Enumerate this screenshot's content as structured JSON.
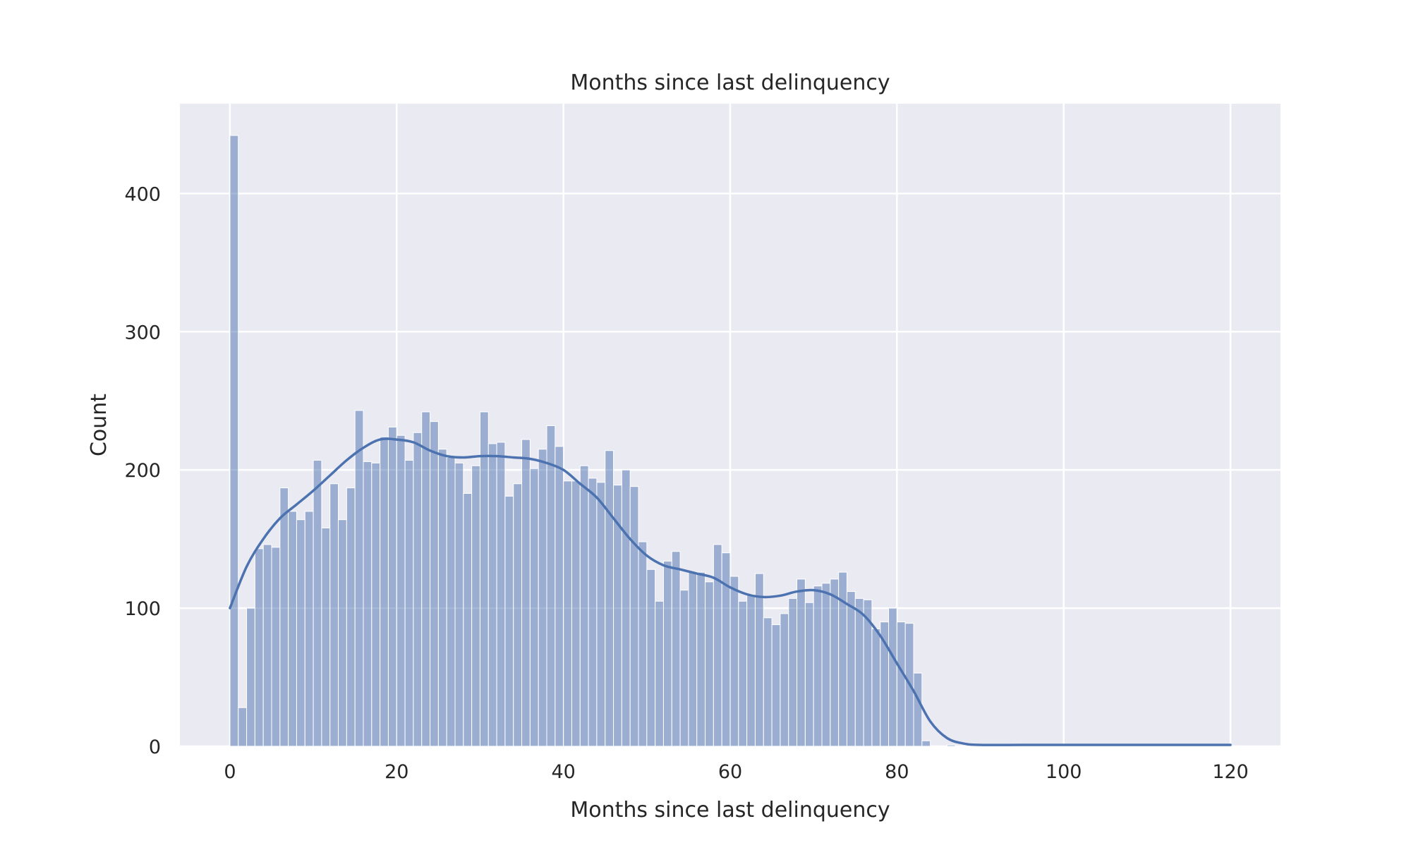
{
  "chart_data": {
    "type": "bar",
    "title": "Months since last delinquency",
    "xlabel": "Months since last delinquency",
    "ylabel": "Count",
    "xlim": [
      -6,
      126
    ],
    "ylim": [
      0,
      465
    ],
    "xticks": [
      0,
      20,
      40,
      60,
      80,
      100,
      120
    ],
    "yticks": [
      0,
      100,
      200,
      300,
      400
    ],
    "grid": true,
    "bin_start": 0,
    "bin_width": 1,
    "bar_color": "#4c72b0",
    "kde_color": "#4c72b0",
    "background_color": "#eaeaf2",
    "grid_color": "#ffffff",
    "values": [
      442,
      28,
      100,
      143,
      146,
      144,
      187,
      170,
      164,
      170,
      207,
      158,
      190,
      164,
      187,
      243,
      206,
      205,
      224,
      231,
      225,
      207,
      227,
      242,
      235,
      215,
      209,
      205,
      183,
      203,
      242,
      219,
      220,
      181,
      190,
      222,
      201,
      215,
      232,
      217,
      192,
      192,
      203,
      194,
      191,
      214,
      189,
      200,
      188,
      148,
      128,
      105,
      134,
      141,
      113,
      126,
      126,
      119,
      146,
      140,
      123,
      105,
      110,
      125,
      93,
      88,
      96,
      107,
      121,
      104,
      116,
      118,
      121,
      126,
      112,
      107,
      106,
      85,
      90,
      100,
      90,
      89,
      53,
      4,
      0,
      0,
      1,
      0,
      0,
      0,
      0,
      0,
      0,
      0,
      0,
      0,
      0,
      0,
      0,
      0,
      0,
      0,
      0,
      0,
      0,
      0,
      0,
      0,
      0,
      0,
      0,
      0,
      0,
      0,
      0,
      0,
      0,
      0,
      0,
      1
    ],
    "kde": {
      "x": [
        0,
        2,
        4,
        6,
        8,
        10,
        12,
        14,
        16,
        18,
        20,
        22,
        24,
        26,
        28,
        30,
        32,
        34,
        36,
        38,
        40,
        42,
        44,
        46,
        48,
        50,
        52,
        54,
        56,
        58,
        60,
        62,
        64,
        66,
        68,
        70,
        72,
        74,
        76,
        78,
        80,
        82,
        84,
        86,
        88,
        90,
        95,
        100,
        110,
        120
      ],
      "y": [
        100,
        130,
        150,
        165,
        175,
        185,
        196,
        207,
        216,
        222,
        222,
        220,
        214,
        210,
        209,
        210,
        210,
        209,
        208,
        205,
        200,
        190,
        180,
        165,
        150,
        138,
        131,
        128,
        125,
        122,
        115,
        110,
        108,
        109,
        112,
        113,
        110,
        103,
        95,
        80,
        60,
        40,
        18,
        6,
        2,
        1,
        1,
        1,
        1,
        1
      ]
    }
  }
}
